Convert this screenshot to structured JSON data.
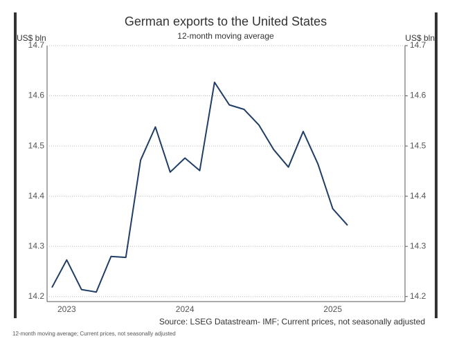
{
  "chart_data": {
    "type": "line",
    "title": "German exports to the United States",
    "subtitle": "12-month moving average",
    "y_label": "US$ bln",
    "y2_label": "US$ bln",
    "categories": [
      null,
      "2023",
      null,
      null,
      null,
      null,
      null,
      null,
      null,
      "2024",
      null,
      null,
      null,
      null,
      null,
      null,
      null,
      null,
      null,
      "2025",
      null
    ],
    "series": [
      {
        "name": "German exports to the United States",
        "color": "#1f3d66",
        "values": [
          14.218,
          14.273,
          14.214,
          14.209,
          14.28,
          14.278,
          14.472,
          14.538,
          14.448,
          14.476,
          14.451,
          14.627,
          14.582,
          14.573,
          14.542,
          14.493,
          14.458,
          14.529,
          14.464,
          14.375,
          14.342
        ]
      }
    ],
    "ylim": [
      14.19,
      14.7
    ],
    "yticks": [
      14.2,
      14.3,
      14.4,
      14.5,
      14.6,
      14.7
    ],
    "y2lim": [
      14.19,
      14.7
    ],
    "y2ticks": [
      14.2,
      14.3,
      14.4,
      14.5,
      14.6,
      14.7
    ],
    "grid": true,
    "source": "Source: LSEG Datastream- IMF; Current prices, not seasonally adjusted",
    "footnote": "12-month moving average; Current prices, not seasonally adjusted"
  }
}
